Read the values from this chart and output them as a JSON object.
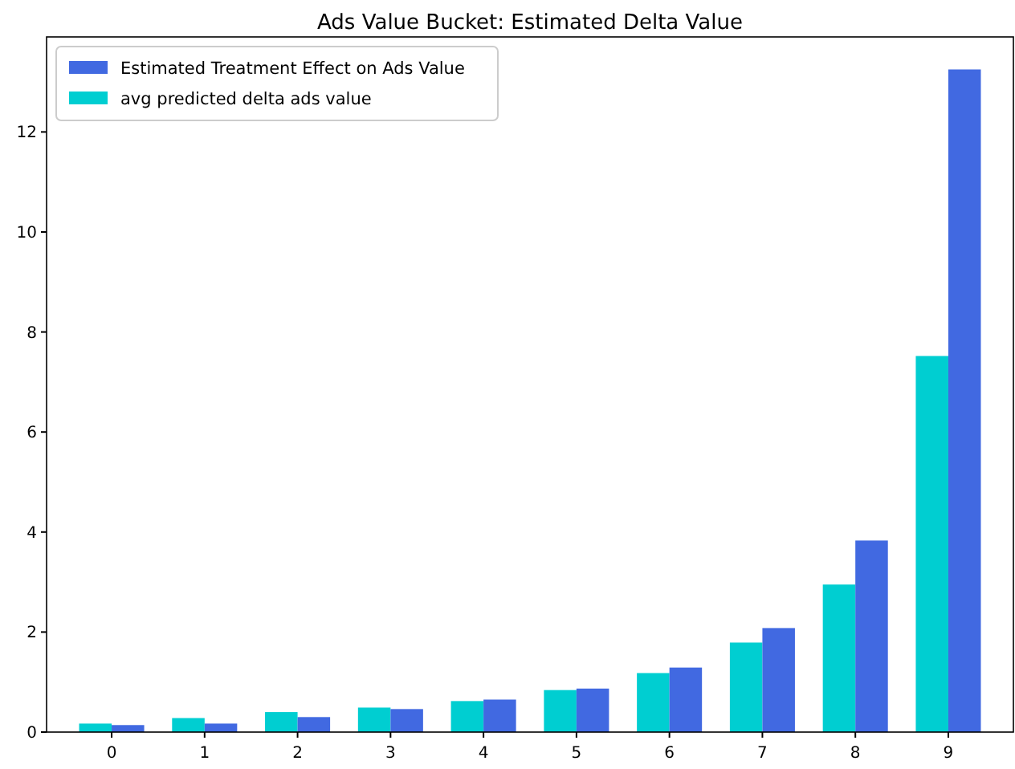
{
  "chart_data": {
    "type": "bar",
    "title": "Ads Value Bucket: Estimated Delta Value",
    "categories": [
      "0",
      "1",
      "2",
      "3",
      "4",
      "5",
      "6",
      "7",
      "8",
      "9"
    ],
    "series": [
      {
        "name": "avg predicted delta ads value",
        "color": "#00ced1",
        "values": [
          0.17,
          0.28,
          0.4,
          0.49,
          0.62,
          0.84,
          1.18,
          1.79,
          2.95,
          7.52
        ]
      },
      {
        "name": "Estimated Treatment Effect on Ads Value",
        "color": "#4169e1",
        "values": [
          0.14,
          0.17,
          0.3,
          0.46,
          0.65,
          0.87,
          1.29,
          2.08,
          3.83,
          13.25
        ]
      }
    ],
    "ylim": [
      0,
      13.9
    ],
    "yticks": [
      0,
      2,
      4,
      6,
      8,
      10,
      12
    ],
    "legend": "top left",
    "grid": false
  }
}
